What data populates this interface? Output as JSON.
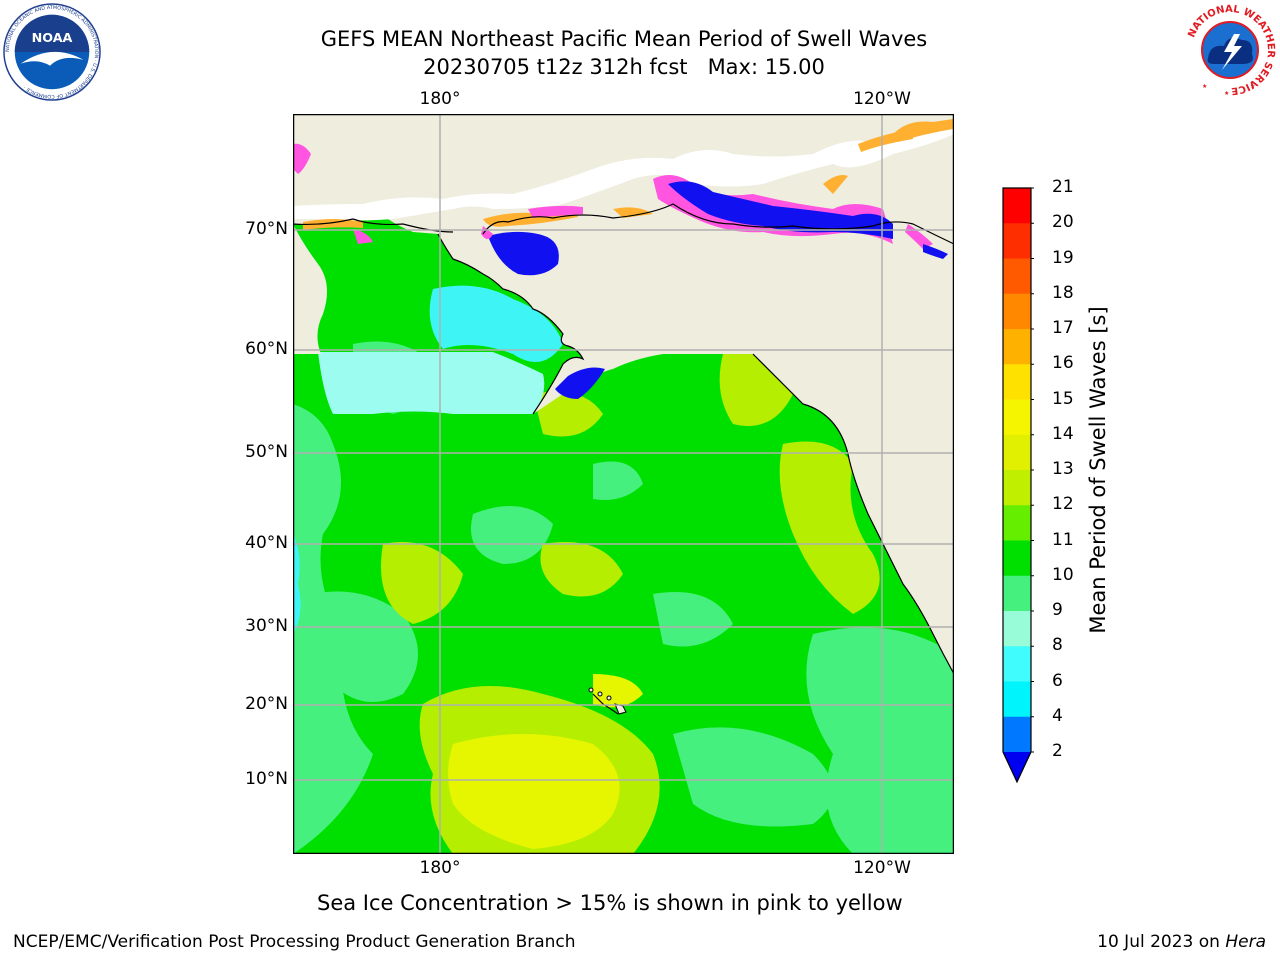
{
  "header": {
    "title_line1": "GEFS MEAN Northeast Pacific Mean Period of Swell Waves",
    "title_line2": "20230705 t12z 312h fcst   Max: 15.00"
  },
  "logos": {
    "left": {
      "text": "NOAA",
      "ring_text": "NATIONAL OCEANIC AND ATMOSPHERIC ADMINISTRATION · U.S. DEPARTMENT OF COMMERCE ·"
    },
    "right": {
      "ring_text": "NATIONAL WEATHER SERVICE"
    }
  },
  "map": {
    "top_lon_labels": [
      "180°",
      "120°W"
    ],
    "bottom_lon_labels": [
      "180°",
      "120°W"
    ],
    "lat_labels": [
      "70°N",
      "60°N",
      "50°N",
      "40°N",
      "30°N",
      "20°N",
      "10°N"
    ],
    "colors": {
      "land": "#efedde",
      "grid": "#b0b0b0",
      "ocean_main": "#00e000",
      "ocean_light": "#46f07e",
      "ocean_yellowgreen": "#b5ee00",
      "ocean_yellow": "#e6f500",
      "ocean_cyan": "#3ff4f4",
      "ocean_paleCyan": "#9cfcf0",
      "ice_pink": "#ff55e0",
      "ice_blue": "#1010f0",
      "ice_orange": "#ffb030"
    }
  },
  "colorbar": {
    "title": "Mean Period of Swell Waves [s]",
    "ticks": [
      "21",
      "20",
      "19",
      "18",
      "17",
      "16",
      "15",
      "14",
      "13",
      "12",
      "11",
      "10",
      "9",
      "8",
      "6",
      "4",
      "2"
    ],
    "colors": [
      "#ff0000",
      "#ff2e00",
      "#ff5a00",
      "#ff8800",
      "#ffb100",
      "#ffe100",
      "#f5f500",
      "#e0f000",
      "#c0f000",
      "#66ee00",
      "#00e000",
      "#46f07e",
      "#98fcd8",
      "#40fcfc",
      "#00f4fc",
      "#0078ff",
      "#0000f0"
    ]
  },
  "caption": "Sea Ice Concentration > 15% is shown in pink to yellow",
  "footer": {
    "left": "NCEP/EMC/Verification Post Processing Product Generation Branch",
    "right_date": "10 Jul 2023 on ",
    "right_machine": "Hera"
  }
}
